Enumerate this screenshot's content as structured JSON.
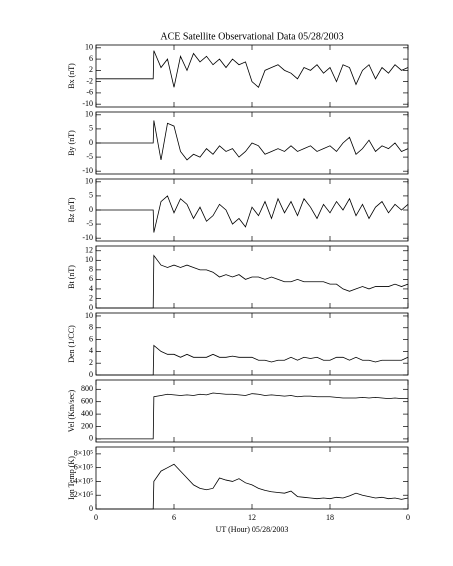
{
  "chart_data": [
    {
      "type": "line",
      "title": "ACE Satellite Observational Data  05/28/2003",
      "ylabel": "Bx (nT)",
      "xlim": [
        0,
        24
      ],
      "ylim": [
        -11,
        11
      ],
      "yticks": [
        -10,
        -6,
        -2,
        2,
        6,
        10
      ],
      "color": "#000000",
      "x": [
        0,
        4.4,
        4.45,
        5,
        5.5,
        6,
        6.5,
        7,
        7.5,
        8,
        8.5,
        9,
        9.5,
        10,
        10.5,
        11,
        11.5,
        12,
        12.5,
        13,
        13.5,
        14,
        14.5,
        15,
        15.5,
        16,
        16.5,
        17,
        17.5,
        18,
        18.5,
        19,
        19.5,
        20,
        20.5,
        21,
        21.5,
        22,
        22.5,
        23,
        23.5,
        24
      ],
      "values": [
        -1,
        -1,
        9,
        3,
        6,
        -4,
        7,
        2,
        8,
        5,
        7,
        4,
        6,
        3,
        6,
        4,
        5,
        -2,
        -4,
        2,
        3,
        4,
        2,
        1,
        -1,
        3,
        2,
        4,
        1,
        3,
        -2,
        4,
        3,
        -3,
        2,
        4,
        -1,
        3,
        1,
        4,
        2,
        3
      ]
    },
    {
      "type": "line",
      "ylabel": "By (nT)",
      "xlim": [
        0,
        24
      ],
      "ylim": [
        -11,
        11
      ],
      "yticks": [
        -10,
        -5,
        0,
        5,
        10
      ],
      "color": "#000000",
      "x": [
        0,
        4.4,
        4.45,
        5,
        5.5,
        6,
        6.5,
        7,
        7.5,
        8,
        8.5,
        9,
        9.5,
        10,
        10.5,
        11,
        11.5,
        12,
        12.5,
        13,
        13.5,
        14,
        14.5,
        15,
        15.5,
        16,
        16.5,
        17,
        17.5,
        18,
        18.5,
        19,
        19.5,
        20,
        20.5,
        21,
        21.5,
        22,
        22.5,
        23,
        23.5,
        24
      ],
      "values": [
        0,
        0,
        8,
        -6,
        7,
        6,
        -3,
        -6,
        -4,
        -5,
        -2,
        -4,
        -1,
        -3,
        -2,
        -5,
        -3,
        0,
        -1,
        -4,
        -3,
        -2,
        -3,
        -1,
        -3,
        -2,
        -1,
        -3,
        -2,
        -1,
        -3,
        0,
        2,
        -4,
        -2,
        1,
        -3,
        -1,
        -2,
        0,
        -3,
        -2
      ]
    },
    {
      "type": "line",
      "ylabel": "Bz (nT)",
      "xlim": [
        0,
        24
      ],
      "ylim": [
        -11,
        11
      ],
      "yticks": [
        -10,
        -5,
        0,
        5,
        10
      ],
      "color": "#000000",
      "x": [
        0,
        4.4,
        4.45,
        5,
        5.5,
        6,
        6.5,
        7,
        7.5,
        8,
        8.5,
        9,
        9.5,
        10,
        10.5,
        11,
        11.5,
        12,
        12.5,
        13,
        13.5,
        14,
        14.5,
        15,
        15.5,
        16,
        16.5,
        17,
        17.5,
        18,
        18.5,
        19,
        19.5,
        20,
        20.5,
        21,
        21.5,
        22,
        22.5,
        23,
        23.5,
        24
      ],
      "values": [
        0,
        0,
        -8,
        3,
        5,
        -1,
        4,
        2,
        -3,
        1,
        -4,
        -2,
        2,
        0,
        -5,
        -3,
        -6,
        1,
        -2,
        3,
        -3,
        4,
        -1,
        3,
        -2,
        4,
        1,
        -3,
        2,
        -1,
        3,
        0,
        4,
        -2,
        2,
        -3,
        1,
        3,
        -1,
        2,
        0,
        2
      ]
    },
    {
      "type": "line",
      "ylabel": "Bt (nT)",
      "xlim": [
        0,
        24
      ],
      "ylim": [
        0,
        13
      ],
      "yticks": [
        0,
        2,
        4,
        6,
        8,
        10,
        12
      ],
      "color": "#000000",
      "x": [
        0,
        4.4,
        4.45,
        5,
        5.5,
        6,
        6.5,
        7,
        7.5,
        8,
        8.5,
        9,
        9.5,
        10,
        10.5,
        11,
        11.5,
        12,
        12.5,
        13,
        13.5,
        14,
        14.5,
        15,
        15.5,
        16,
        16.5,
        17,
        17.5,
        18,
        18.5,
        19,
        19.5,
        20,
        20.5,
        21,
        21.5,
        22,
        22.5,
        23,
        23.5,
        24
      ],
      "values": [
        0,
        0,
        11,
        9,
        8.5,
        9,
        8.5,
        9,
        8.5,
        8,
        8,
        7.5,
        6.5,
        7,
        6.5,
        7,
        6,
        6.5,
        6.5,
        6,
        6.5,
        6,
        5.5,
        5.5,
        6,
        5.5,
        5.5,
        5.5,
        5.5,
        5,
        5,
        4,
        3.5,
        4,
        4.5,
        4,
        4.5,
        4.5,
        4.5,
        5,
        4.5,
        5
      ]
    },
    {
      "type": "line",
      "ylabel": "Den (1/CC)",
      "xlim": [
        0,
        24
      ],
      "ylim": [
        0,
        10.5
      ],
      "yticks": [
        0,
        2,
        4,
        6,
        8,
        10
      ],
      "color": "#000000",
      "x": [
        0,
        4.4,
        4.45,
        5,
        5.5,
        6,
        6.5,
        7,
        7.5,
        8,
        8.5,
        9,
        9.5,
        10,
        10.5,
        11,
        11.5,
        12,
        12.5,
        13,
        13.5,
        14,
        14.5,
        15,
        15.5,
        16,
        16.5,
        17,
        17.5,
        18,
        18.5,
        19,
        19.5,
        20,
        20.5,
        21,
        21.5,
        22,
        22.5,
        23,
        23.5,
        24
      ],
      "values": [
        0,
        0,
        5,
        4,
        3.5,
        3.5,
        3,
        3.5,
        3,
        3,
        3,
        3.5,
        3,
        3,
        3.2,
        3,
        3,
        3,
        2.5,
        2.5,
        2.2,
        2.5,
        2.5,
        3,
        2.5,
        3,
        2.8,
        3,
        2.5,
        2.5,
        3,
        3,
        2.5,
        3,
        2.5,
        2.5,
        2.2,
        2.5,
        2.5,
        2.5,
        2.5,
        3
      ]
    },
    {
      "type": "line",
      "ylabel": "Vel (Km/sec)",
      "xlim": [
        0,
        24
      ],
      "ylim": [
        -50,
        950
      ],
      "yticks": [
        0,
        200,
        400,
        600,
        800
      ],
      "color": "#000000",
      "x": [
        0,
        4.4,
        4.45,
        5,
        5.5,
        6,
        6.5,
        7,
        7.5,
        8,
        8.5,
        9,
        9.5,
        10,
        10.5,
        11,
        11.5,
        12,
        12.5,
        13,
        13.5,
        14,
        14.5,
        15,
        15.5,
        16,
        16.5,
        17,
        17.5,
        18,
        18.5,
        19,
        19.5,
        20,
        20.5,
        21,
        21.5,
        22,
        22.5,
        23,
        23.5,
        24
      ],
      "values": [
        0,
        0,
        680,
        700,
        720,
        710,
        700,
        710,
        700,
        720,
        710,
        740,
        730,
        720,
        720,
        710,
        700,
        730,
        720,
        700,
        710,
        700,
        690,
        700,
        680,
        690,
        690,
        680,
        680,
        680,
        670,
        660,
        660,
        660,
        670,
        660,
        670,
        660,
        650,
        660,
        650,
        650
      ]
    },
    {
      "type": "line",
      "ylabel": "Ion Temp (K)",
      "xlabel": "UT (Hour)  05/28/2003",
      "xlim": [
        0,
        24
      ],
      "ylim": [
        0,
        900000
      ],
      "yticks": [
        0,
        {
          "value": 200000,
          "label": "2×10⁵"
        },
        {
          "value": 400000,
          "label": "4×10⁵"
        },
        {
          "value": 600000,
          "label": "6×10⁵"
        },
        {
          "value": 800000,
          "label": "8×10⁵"
        }
      ],
      "xticks": [
        0,
        6,
        12,
        18,
        {
          "value": 24,
          "label": "0"
        }
      ],
      "color": "#000000",
      "x": [
        0,
        4.4,
        4.45,
        5,
        5.5,
        6,
        6.5,
        7,
        7.5,
        8,
        8.5,
        9,
        9.5,
        10,
        10.5,
        11,
        11.5,
        12,
        12.5,
        13,
        13.5,
        14,
        14.5,
        15,
        15.5,
        16,
        16.5,
        17,
        17.5,
        18,
        18.5,
        19,
        19.5,
        20,
        20.5,
        21,
        21.5,
        22,
        22.5,
        23,
        23.5,
        24
      ],
      "values": [
        0,
        0,
        400000,
        550000,
        600000,
        650000,
        550000,
        450000,
        350000,
        300000,
        280000,
        300000,
        450000,
        420000,
        400000,
        440000,
        380000,
        350000,
        300000,
        270000,
        250000,
        240000,
        230000,
        260000,
        180000,
        170000,
        160000,
        150000,
        160000,
        150000,
        170000,
        160000,
        190000,
        230000,
        200000,
        180000,
        160000,
        170000,
        150000,
        160000,
        140000,
        160000
      ]
    }
  ]
}
